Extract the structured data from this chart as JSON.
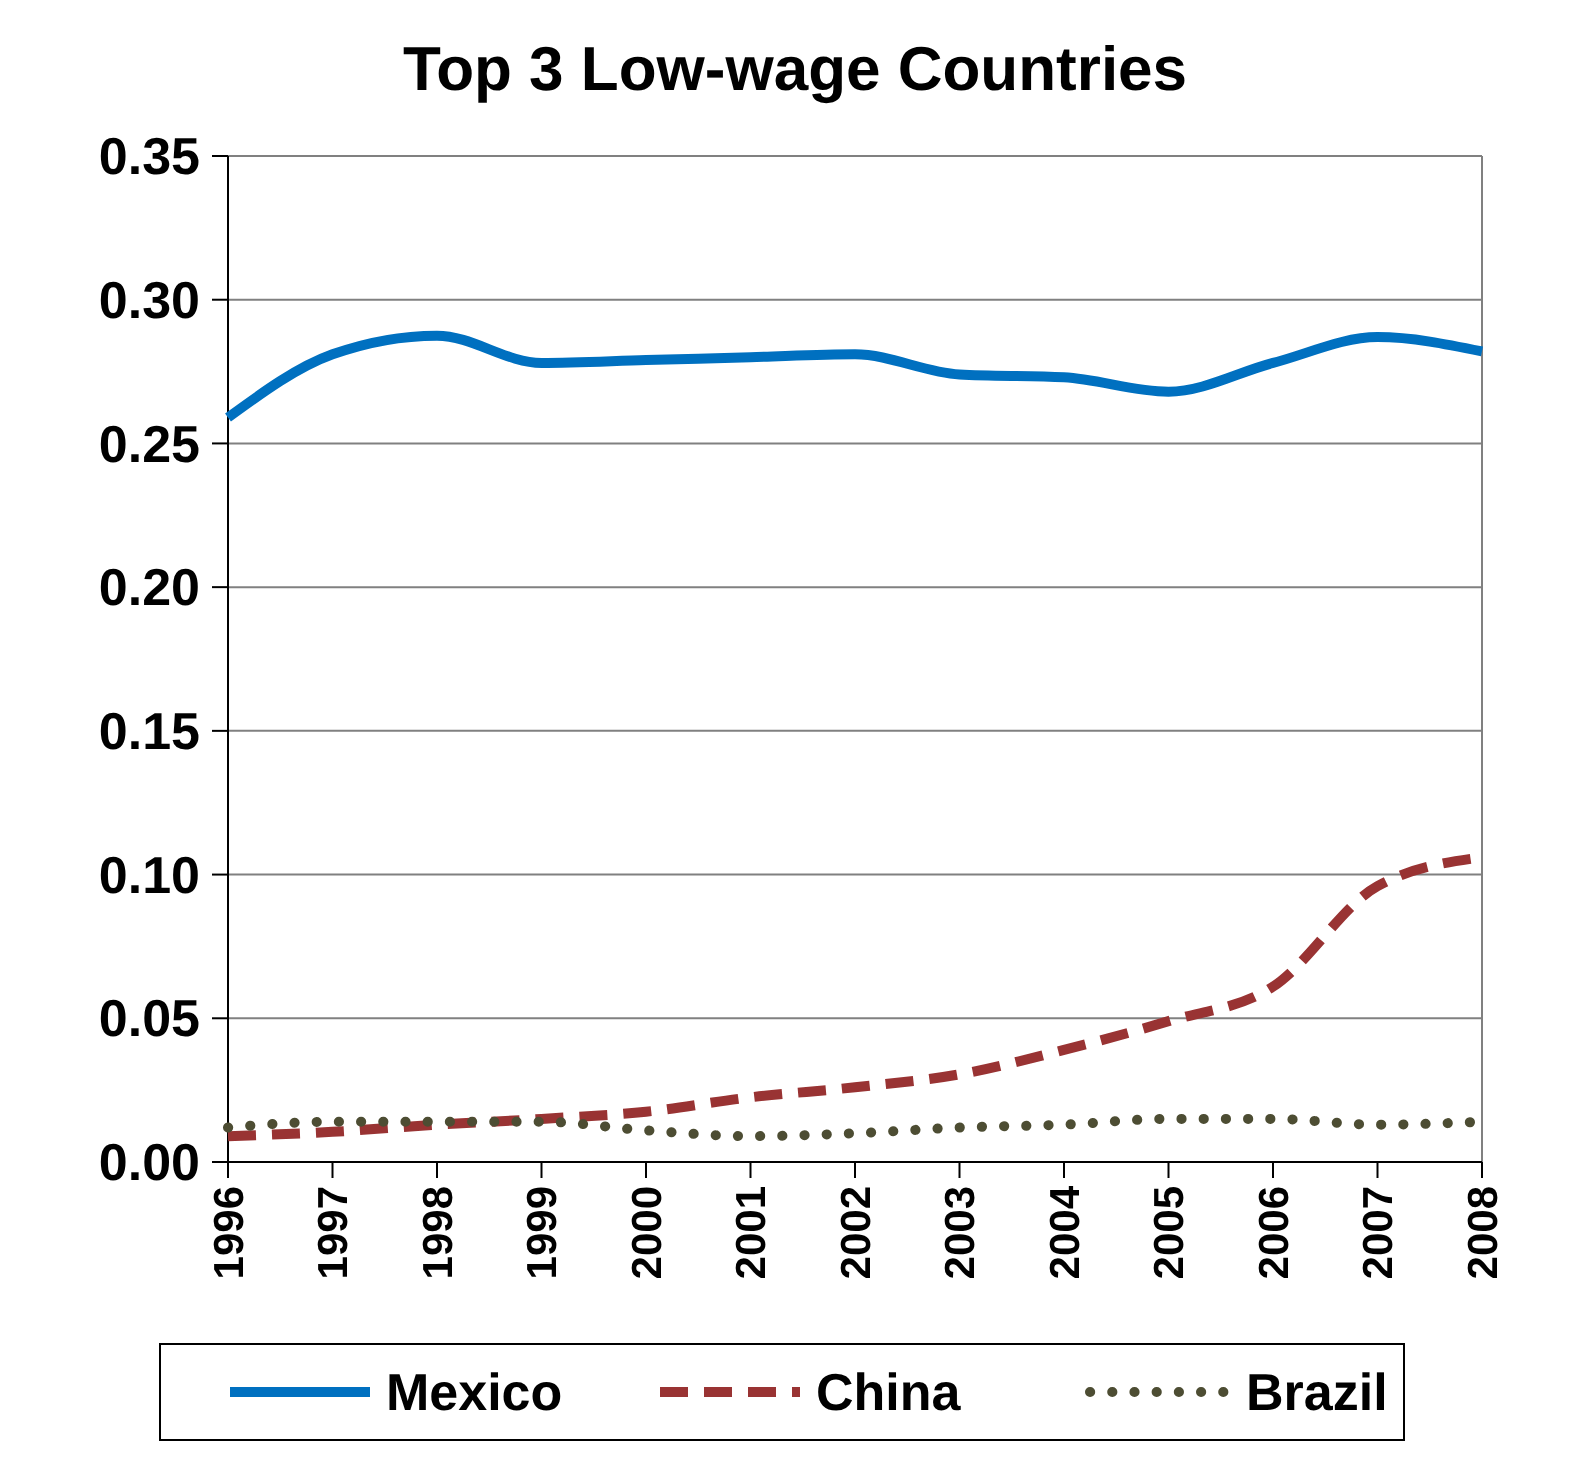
{
  "chart_data": {
    "type": "line",
    "title": "Top 3 Low-wage Countries",
    "categories": [
      "1996",
      "1997",
      "1998",
      "1999",
      "2000",
      "2001",
      "2002",
      "2003",
      "2004",
      "2005",
      "2006",
      "2007",
      "2008"
    ],
    "series": [
      {
        "name": "Mexico",
        "color": "#0070c0",
        "line_style": "solid",
        "values": [
          0.259,
          0.281,
          0.2875,
          0.278,
          0.279,
          0.28,
          0.281,
          0.274,
          0.273,
          0.268,
          0.278,
          0.287,
          0.282
        ]
      },
      {
        "name": "China",
        "color": "#993333",
        "line_style": "dashed",
        "values": [
          0.009,
          0.0105,
          0.013,
          0.015,
          0.0175,
          0.0225,
          0.026,
          0.0305,
          0.039,
          0.049,
          0.061,
          0.096,
          0.106
        ]
      },
      {
        "name": "Brazil",
        "color": "#4d4d33",
        "line_style": "dotted",
        "values": [
          0.012,
          0.014,
          0.014,
          0.014,
          0.011,
          0.009,
          0.01,
          0.012,
          0.013,
          0.015,
          0.015,
          0.013,
          0.014
        ]
      }
    ],
    "ylim": [
      0,
      0.35
    ],
    "yticks": [
      {
        "value": 0,
        "label": "0.00"
      },
      {
        "value": 0.05,
        "label": "0.05"
      },
      {
        "value": 0.1,
        "label": "0.10"
      },
      {
        "value": 0.15,
        "label": "0.15"
      },
      {
        "value": 0.2,
        "label": "0.20"
      },
      {
        "value": 0.25,
        "label": "0.25"
      },
      {
        "value": 0.3,
        "label": "0.30"
      },
      {
        "value": 0.35,
        "label": "0.35"
      }
    ],
    "grid": "y",
    "legend": "bottom",
    "marker": "none"
  }
}
